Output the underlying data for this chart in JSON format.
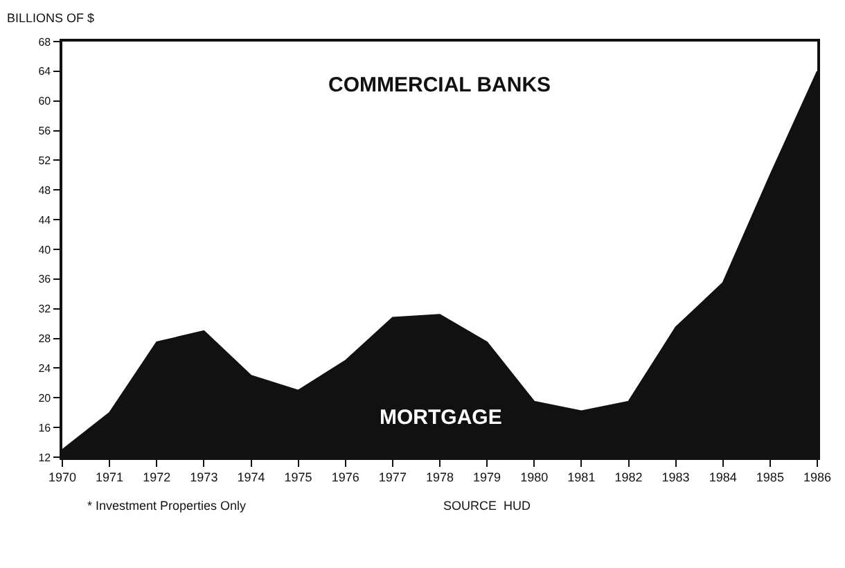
{
  "chart_data": {
    "type": "area",
    "ylabel": "BILLIONS OF $",
    "x": [
      1970,
      1971,
      1972,
      1973,
      1974,
      1975,
      1976,
      1977,
      1978,
      1979,
      1980,
      1981,
      1982,
      1983,
      1984,
      1985,
      1986
    ],
    "series": [
      {
        "color": "#111111",
        "values": [
          13,
          18,
          27.5,
          29,
          23,
          21,
          25,
          30.8,
          31.2,
          27.5,
          19.5,
          18.2,
          19.5,
          29.5,
          35.5,
          50,
          64
        ]
      }
    ],
    "xlim": [
      1970,
      1986
    ],
    "xticks": [
      1970,
      1971,
      1972,
      1973,
      1974,
      1975,
      1976,
      1977,
      1978,
      1979,
      1980,
      1981,
      1982,
      1983,
      1984,
      1985,
      1986
    ],
    "ylim": [
      12,
      68
    ],
    "yticks": [
      12,
      16,
      20,
      24,
      28,
      32,
      36,
      40,
      44,
      48,
      52,
      56,
      60,
      64,
      68
    ],
    "grid": false,
    "annotations": [
      "COMMERCIAL BANKS",
      "MORTGAGE",
      "* Investment Properties Only",
      "SOURCE  HUD"
    ]
  }
}
